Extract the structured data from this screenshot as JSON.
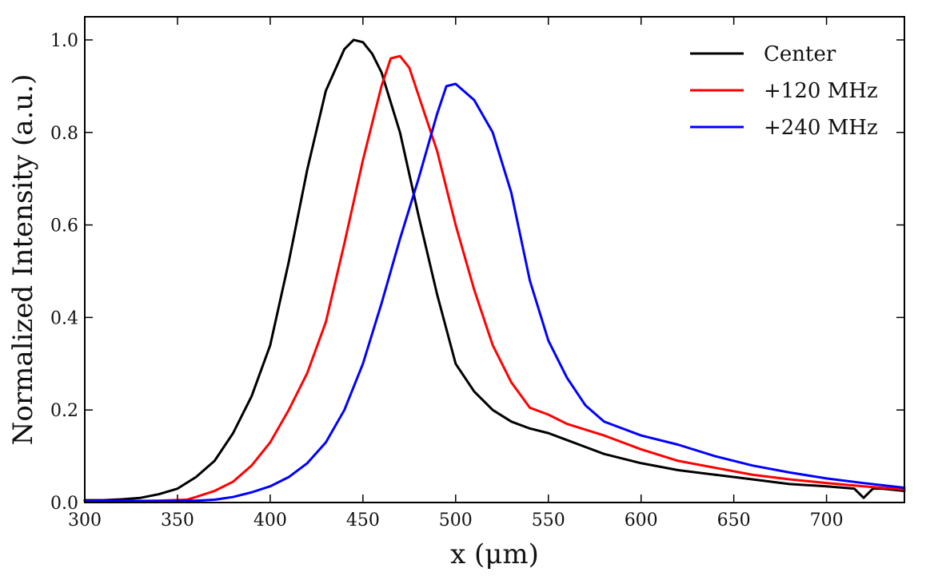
{
  "chart_data": {
    "type": "line",
    "title": "",
    "xlabel": "x (μm)",
    "ylabel": "Normalized Intensity (a.u.)",
    "xlim": [
      300,
      742
    ],
    "ylim": [
      0,
      1.05
    ],
    "xticks": [
      300,
      350,
      400,
      450,
      500,
      550,
      600,
      650,
      700
    ],
    "yticks": [
      0.0,
      0.2,
      0.4,
      0.6,
      0.8,
      1.0
    ],
    "xtick_labels": [
      "300",
      "350",
      "400",
      "450",
      "500",
      "550",
      "600",
      "650",
      "700"
    ],
    "ytick_labels": [
      "0.0",
      "0.2",
      "0.4",
      "0.6",
      "0.8",
      "1.0"
    ],
    "grid": false,
    "legend_position": "top-right",
    "series": [
      {
        "name": "Center",
        "color": "#000000",
        "x": [
          300,
          310,
          320,
          330,
          340,
          350,
          360,
          370,
          380,
          390,
          400,
          410,
          420,
          430,
          440,
          445,
          450,
          455,
          460,
          470,
          480,
          490,
          500,
          510,
          520,
          530,
          540,
          550,
          560,
          570,
          580,
          600,
          620,
          640,
          660,
          680,
          700,
          715,
          720,
          725,
          730,
          742
        ],
        "y": [
          0.005,
          0.005,
          0.007,
          0.01,
          0.018,
          0.03,
          0.055,
          0.09,
          0.15,
          0.23,
          0.34,
          0.52,
          0.72,
          0.89,
          0.98,
          1.0,
          0.995,
          0.97,
          0.93,
          0.8,
          0.62,
          0.45,
          0.3,
          0.24,
          0.2,
          0.175,
          0.16,
          0.15,
          0.135,
          0.12,
          0.105,
          0.085,
          0.07,
          0.06,
          0.05,
          0.04,
          0.035,
          0.03,
          0.01,
          0.03,
          0.03,
          0.025
        ]
      },
      {
        "name": "+120 MHz",
        "color": "#ff0000",
        "x": [
          300,
          320,
          340,
          355,
          360,
          370,
          380,
          390,
          400,
          410,
          420,
          430,
          440,
          450,
          460,
          465,
          470,
          475,
          480,
          490,
          500,
          510,
          520,
          530,
          540,
          550,
          560,
          580,
          600,
          620,
          640,
          660,
          680,
          700,
          720,
          742
        ],
        "y": [
          0.003,
          0.003,
          0.004,
          0.006,
          0.012,
          0.025,
          0.045,
          0.08,
          0.13,
          0.2,
          0.28,
          0.39,
          0.56,
          0.74,
          0.9,
          0.96,
          0.965,
          0.94,
          0.88,
          0.76,
          0.6,
          0.46,
          0.34,
          0.26,
          0.205,
          0.19,
          0.17,
          0.145,
          0.115,
          0.09,
          0.075,
          0.06,
          0.05,
          0.042,
          0.035,
          0.028
        ]
      },
      {
        "name": "+240 MHz",
        "color": "#0000ff",
        "x": [
          300,
          340,
          360,
          370,
          380,
          390,
          400,
          410,
          420,
          430,
          440,
          450,
          460,
          470,
          480,
          490,
          495,
          500,
          510,
          520,
          530,
          540,
          550,
          560,
          570,
          580,
          600,
          620,
          640,
          660,
          680,
          700,
          720,
          742
        ],
        "y": [
          0.003,
          0.003,
          0.004,
          0.006,
          0.012,
          0.022,
          0.035,
          0.055,
          0.085,
          0.13,
          0.2,
          0.3,
          0.43,
          0.57,
          0.7,
          0.84,
          0.9,
          0.905,
          0.87,
          0.8,
          0.67,
          0.48,
          0.35,
          0.27,
          0.21,
          0.175,
          0.145,
          0.125,
          0.1,
          0.08,
          0.065,
          0.052,
          0.042,
          0.032
        ]
      }
    ]
  }
}
